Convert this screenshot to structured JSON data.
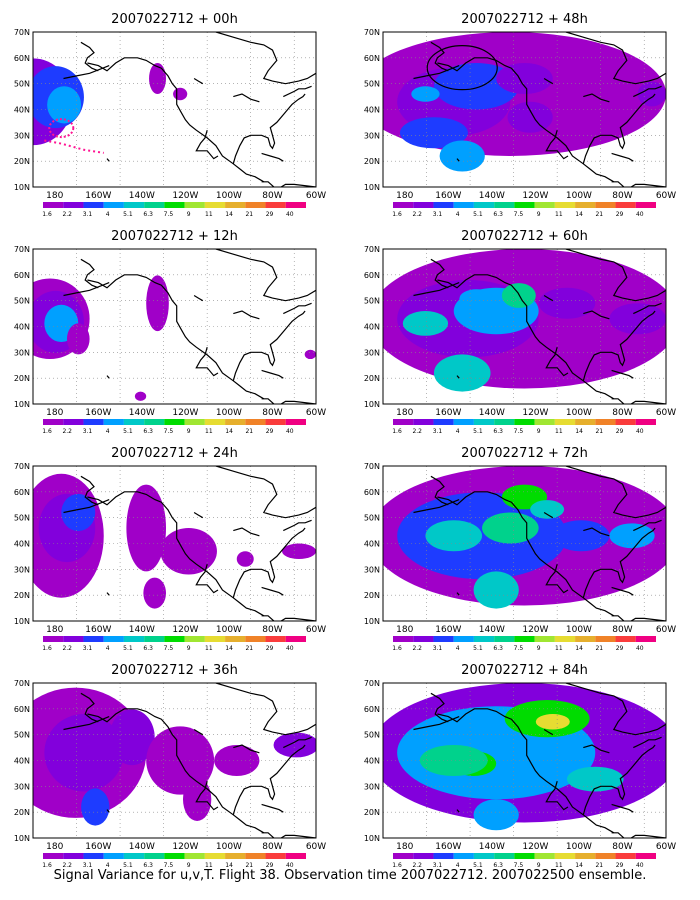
{
  "figure": {
    "caption": "Signal Variance for u,v,T. Flight 38. Observation time 2007022712. 2007022500 ensemble."
  },
  "chart_data": [
    {
      "type": "heatmap",
      "title": "2007022712 + 00h",
      "lead_hour": 0
    },
    {
      "type": "heatmap",
      "title": "2007022712 + 48h",
      "lead_hour": 48
    },
    {
      "type": "heatmap",
      "title": "2007022712 + 12h",
      "lead_hour": 12
    },
    {
      "type": "heatmap",
      "title": "2007022712 + 60h",
      "lead_hour": 60
    },
    {
      "type": "heatmap",
      "title": "2007022712 + 24h",
      "lead_hour": 24
    },
    {
      "type": "heatmap",
      "title": "2007022712 + 72h",
      "lead_hour": 72
    },
    {
      "type": "heatmap",
      "title": "2007022712 + 36h",
      "lead_hour": 36
    },
    {
      "type": "heatmap",
      "title": "2007022712 + 84h",
      "lead_hour": 84
    }
  ],
  "axes": {
    "lon_ticks": [
      "180",
      "160W",
      "140W",
      "120W",
      "100W",
      "80W",
      "60W"
    ],
    "lat_ticks": [
      "10N",
      "20N",
      "30N",
      "40N",
      "50N",
      "60N",
      "70N"
    ],
    "lon_range": [
      170,
      300
    ],
    "lat_range": [
      10,
      70
    ],
    "grid": "dotted"
  },
  "colorbar": {
    "levels": [
      "1.6",
      "2.2",
      "3.1",
      "4",
      "5.1",
      "6.3",
      "7.5",
      "9",
      "11",
      "14",
      "21",
      "29",
      "40"
    ],
    "colors": [
      "#a000c8",
      "#8200dc",
      "#1e3cff",
      "#00a0ff",
      "#00c8c8",
      "#00d28c",
      "#00dc00",
      "#a0e632",
      "#e6dc32",
      "#e6af2d",
      "#f08228",
      "#fa3c3c",
      "#f00082"
    ]
  }
}
